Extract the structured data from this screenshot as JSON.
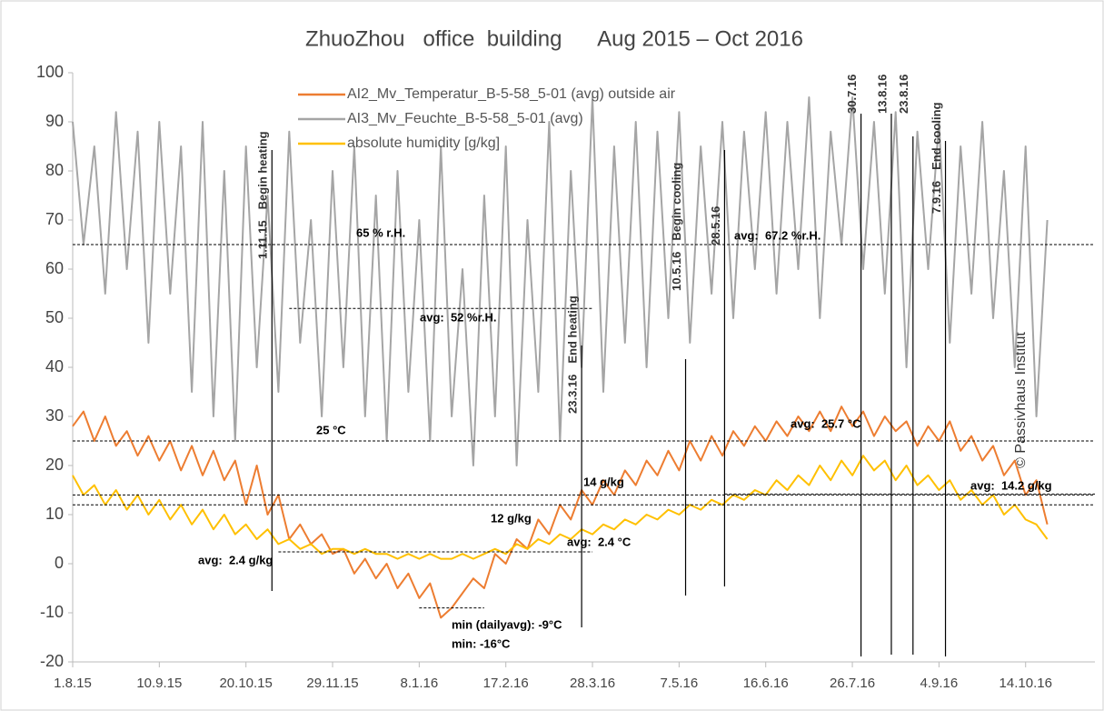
{
  "chart_data": {
    "type": "line",
    "title": "ZhuoZhou   office  building      Aug 2015 – Oct 2016",
    "copyright": "© Passivhaus Institut",
    "xlim": [
      0,
      472
    ],
    "ylim": [
      -20,
      100
    ],
    "yticks": [
      -20,
      -10,
      0,
      10,
      20,
      30,
      40,
      50,
      60,
      70,
      80,
      90,
      100
    ],
    "xticks": [
      {
        "value": 0,
        "label": "1.8.15"
      },
      {
        "value": 40,
        "label": "10.9.15"
      },
      {
        "value": 80,
        "label": "20.10.15"
      },
      {
        "value": 120,
        "label": "29.11.15"
      },
      {
        "value": 160,
        "label": "8.1.16"
      },
      {
        "value": 200,
        "label": "17.2.16"
      },
      {
        "value": 240,
        "label": "28.3.16"
      },
      {
        "value": 280,
        "label": "7.5.16"
      },
      {
        "value": 320,
        "label": "16.6.16"
      },
      {
        "value": 360,
        "label": "26.7.16"
      },
      {
        "value": 400,
        "label": "4.9.16"
      },
      {
        "value": 440,
        "label": "14.10.16"
      }
    ],
    "x": [
      0,
      5,
      10,
      15,
      20,
      25,
      30,
      35,
      40,
      45,
      50,
      55,
      60,
      65,
      70,
      75,
      80,
      85,
      90,
      95,
      100,
      105,
      110,
      115,
      120,
      125,
      130,
      135,
      140,
      145,
      150,
      155,
      160,
      165,
      170,
      175,
      180,
      185,
      190,
      195,
      200,
      205,
      210,
      215,
      220,
      225,
      230,
      235,
      240,
      245,
      250,
      255,
      260,
      265,
      270,
      275,
      280,
      285,
      290,
      295,
      300,
      305,
      310,
      315,
      320,
      325,
      330,
      335,
      340,
      345,
      350,
      355,
      360,
      365,
      370,
      375,
      380,
      385,
      390,
      395,
      400,
      405,
      410,
      415,
      420,
      425,
      430,
      435,
      440,
      445,
      450
    ],
    "series": [
      {
        "name": "AI3_Mv_Feuchte_B-5-58_5-01 (avg)",
        "color": "#a5a5a5",
        "values": [
          90,
          65,
          85,
          55,
          92,
          60,
          88,
          45,
          90,
          55,
          85,
          35,
          90,
          30,
          80,
          25,
          85,
          40,
          75,
          35,
          88,
          45,
          70,
          30,
          80,
          40,
          85,
          30,
          75,
          25,
          80,
          35,
          70,
          25,
          85,
          30,
          60,
          20,
          75,
          30,
          85,
          20,
          70,
          35,
          90,
          25,
          80,
          40,
          95,
          35,
          85,
          45,
          90,
          40,
          88,
          50,
          92,
          45,
          85,
          55,
          90,
          50,
          88,
          60,
          92,
          55,
          90,
          60,
          95,
          50,
          88,
          65,
          95,
          60,
          90,
          55,
          92,
          40,
          88,
          60,
          90,
          45,
          85,
          55,
          90,
          50,
          80,
          40,
          85,
          30,
          70
        ]
      },
      {
        "name": "AI2_Mv_Temperatur_B-5-58_5-01 (avg)   outside air",
        "color": "#ed7d31",
        "values": [
          28,
          31,
          25,
          30,
          24,
          27,
          22,
          26,
          21,
          25,
          19,
          24,
          18,
          23,
          17,
          21,
          12,
          20,
          10,
          14,
          5,
          8,
          4,
          6,
          2,
          3,
          -2,
          1,
          -3,
          0,
          -5,
          -2,
          -7,
          -4,
          -11,
          -9,
          -6,
          -3,
          -5,
          2,
          0,
          5,
          3,
          9,
          6,
          12,
          9,
          15,
          12,
          17,
          14,
          19,
          16,
          21,
          18,
          23,
          19,
          25,
          21,
          26,
          22,
          27,
          24,
          28,
          25,
          29,
          26,
          30,
          27,
          31,
          27,
          32,
          28,
          31,
          26,
          30,
          27,
          29,
          24,
          28,
          25,
          29,
          23,
          26,
          21,
          24,
          18,
          21,
          14,
          17,
          8
        ]
      },
      {
        "name": "absolute humidity  [g/kg]",
        "color": "#ffc000",
        "values": [
          18,
          14,
          16,
          12,
          15,
          11,
          14,
          10,
          13,
          9,
          12,
          8,
          11,
          7,
          10,
          6,
          8,
          5,
          7,
          4,
          5,
          3,
          4,
          2,
          3,
          3,
          2,
          3,
          2,
          2,
          1,
          2,
          1,
          2,
          1,
          1,
          2,
          1,
          2,
          3,
          2,
          4,
          3,
          5,
          4,
          6,
          5,
          7,
          6,
          8,
          7,
          9,
          8,
          10,
          9,
          11,
          10,
          12,
          11,
          13,
          12,
          14,
          13,
          15,
          14,
          17,
          15,
          18,
          16,
          20,
          17,
          21,
          18,
          22,
          19,
          21,
          17,
          20,
          16,
          18,
          15,
          17,
          13,
          15,
          12,
          14,
          10,
          12,
          9,
          8,
          5
        ]
      }
    ],
    "reference_lines": [
      {
        "value": 65
      },
      {
        "value": 52,
        "from": 100,
        "to": 240
      },
      {
        "value": 25
      },
      {
        "value": 14
      },
      {
        "value": 12
      },
      {
        "value": 2.4,
        "from": 95,
        "to": 240
      },
      {
        "value": 14.2,
        "from": 301,
        "to": 472
      },
      {
        "value": -9,
        "from": 160,
        "to": 190
      }
    ],
    "events": [
      {
        "date": "1.11.15",
        "text": "Begin heating",
        "x": 92,
        "color": "#e02020"
      },
      {
        "date": "23.3.16",
        "text": "End heating",
        "x": 235,
        "color": "#e02020"
      },
      {
        "date": "10.5.16",
        "text": "Begin cooling",
        "x": 283,
        "color": "#2aa8e0"
      },
      {
        "date": "28.5.16",
        "x": 301,
        "color": "#000000"
      },
      {
        "date": "30.7.16",
        "x": 364,
        "color": "#000000"
      },
      {
        "date": "13.8.16",
        "x": 378,
        "color": "#000000"
      },
      {
        "date": "23.8.16",
        "x": 388,
        "color": "#000000"
      },
      {
        "date": "7.9.16",
        "text": "End cooling",
        "x": 403,
        "color": "#2aa8e0"
      }
    ],
    "annotations": [
      "65 % r.H.",
      "avg:  52 %r.H.",
      "avg:  67.2 %r.H.",
      "25 °C",
      "avg:  25.7 °C",
      "14 g/kg",
      "12 g/kg",
      "avg:  2.4 g/kg",
      "avg:  2.4 °C",
      "avg:  14.2 g/kg",
      "min (dailyavg): -9°C",
      "min: -16°C"
    ]
  }
}
